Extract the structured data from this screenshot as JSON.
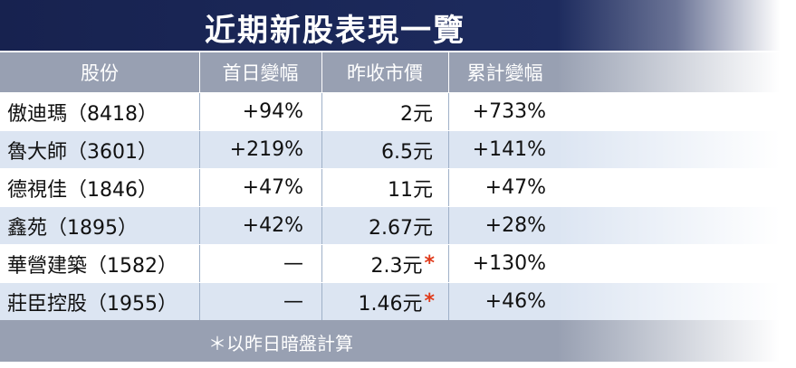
{
  "title": "近期新股表現一覽",
  "table": {
    "headers": [
      "股份",
      "首日變幅",
      "昨收市價",
      "累計變幅"
    ],
    "rows": [
      {
        "name": "傲迪瑪（8418）",
        "first_day": "+94%",
        "prev_close": "2元",
        "cumulative": "+733%"
      },
      {
        "name": "魯大師（3601）",
        "first_day": "+219%",
        "prev_close": "6.5元",
        "cumulative": "+141%"
      },
      {
        "name": "德視佳（1846）",
        "first_day": "+47%",
        "prev_close": "11元",
        "cumulative": "+47%"
      },
      {
        "name": "鑫苑（1895）",
        "first_day": "+42%",
        "prev_close": "2.67元",
        "cumulative": "+28%"
      },
      {
        "name": "華營建築（1582）",
        "first_day": "—",
        "prev_close": "2.3元",
        "prev_close_mark": "*",
        "cumulative": "+130%"
      },
      {
        "name": "莊臣控股（1955）",
        "first_day": "—",
        "prev_close": "1.46元",
        "prev_close_mark": "*",
        "cumulative": "+46%"
      }
    ]
  },
  "footnote": "＊以昨日暗盤計算"
}
